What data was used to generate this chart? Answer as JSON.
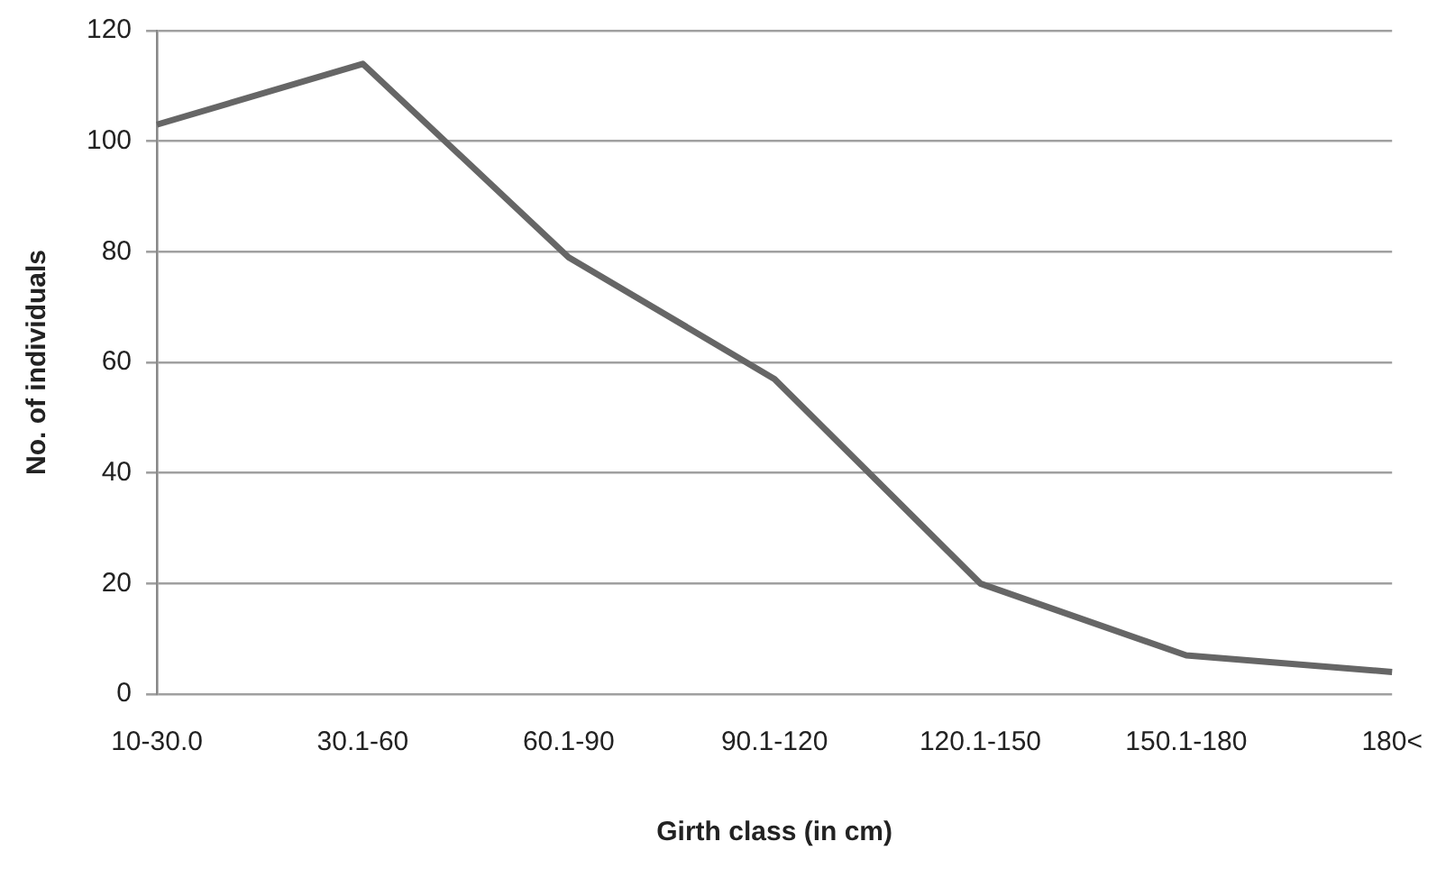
{
  "chart_data": {
    "type": "line",
    "xlabel": "Girth class (in cm)",
    "ylabel": "No. of individuals",
    "categories": [
      "10-30.0",
      "30.1-60",
      "60.1-90",
      "90.1-120",
      "120.1-150",
      "150.1-180",
      "180<"
    ],
    "series": [
      {
        "color": "#666666",
        "values": [
          103,
          114,
          79,
          57,
          20,
          7,
          4
        ]
      }
    ],
    "ylim": [
      0,
      120
    ],
    "yticks": [
      0,
      20,
      40,
      60,
      80,
      100,
      120
    ],
    "grid": "y",
    "legend": false,
    "marker": "none"
  }
}
